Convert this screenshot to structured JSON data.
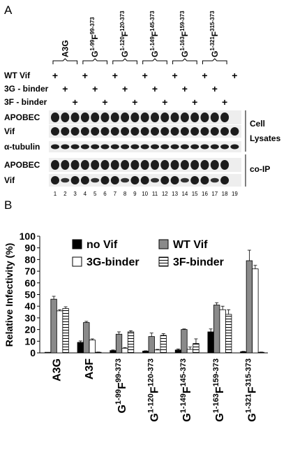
{
  "panel_a": {
    "letter": "A",
    "construct_groups": [
      {
        "base": "A3G",
        "sup1": "",
        "mid": "",
        "sup2": ""
      },
      {
        "base": "G",
        "sup1": "1-99",
        "mid": "F",
        "sup2": "99-373"
      },
      {
        "base": "G",
        "sup1": "1-120",
        "mid": "F",
        "sup2": "120-373"
      },
      {
        "base": "G",
        "sup1": "1-149",
        "mid": "F",
        "sup2": "145-373"
      },
      {
        "base": "G",
        "sup1": "1-163",
        "mid": "F",
        "sup2": "159-373"
      },
      {
        "base": "G",
        "sup1": "1-321",
        "mid": "F",
        "sup2": "315-373"
      }
    ],
    "condition_rows": [
      {
        "label": "WT Vif",
        "lanes": [
          1,
          4,
          7,
          10,
          13,
          16,
          19
        ]
      },
      {
        "label": "3G - binder",
        "lanes": [
          2,
          5,
          8,
          11,
          14,
          17
        ]
      },
      {
        "label": "3F - binder",
        "lanes": [
          3,
          6,
          9,
          12,
          15,
          18
        ]
      }
    ],
    "blot_rows": [
      {
        "label": "APOBEC"
      },
      {
        "label": "Vif"
      },
      {
        "label": "α-tubulin"
      },
      {
        "label": "APOBEC"
      },
      {
        "label": "Vif"
      }
    ],
    "side_labels": {
      "lysates_1": "Cell",
      "lysates_2": "Lysates",
      "coip": "co-IP"
    },
    "lane_numbers": [
      "1",
      "2",
      "3",
      "4",
      "5",
      "6",
      "7",
      "8",
      "9",
      "10",
      "11",
      "12",
      "13",
      "14",
      "15",
      "16",
      "17",
      "18",
      "19"
    ],
    "plus_symbol": "+"
  },
  "panel_b": {
    "letter": "B"
  },
  "chart_data": {
    "type": "bar",
    "ylabel": "Relative Infectivity (%)",
    "ylim": [
      0,
      100
    ],
    "yticks": [
      "0",
      "10",
      "20",
      "30",
      "40",
      "50",
      "60",
      "70",
      "80",
      "90",
      "100"
    ],
    "categories": [
      {
        "base": "A3G",
        "sup1": "",
        "mid": "",
        "sup2": ""
      },
      {
        "base": "A3F",
        "sup1": "",
        "mid": "",
        "sup2": ""
      },
      {
        "base": "G",
        "sup1": "1-99",
        "mid": "F",
        "sup2": "99-373"
      },
      {
        "base": "G",
        "sup1": "1-120",
        "mid": "F",
        "sup2": "120-373"
      },
      {
        "base": "G",
        "sup1": "1-149",
        "mid": "F",
        "sup2": "145-373"
      },
      {
        "base": "G",
        "sup1": "1-163",
        "mid": "F",
        "sup2": "159-373"
      },
      {
        "base": "G",
        "sup1": "1-321",
        "mid": "F",
        "sup2": "315-373"
      }
    ],
    "series": [
      {
        "name": "no Vif",
        "style": "black",
        "values": [
          0.5,
          9,
          2,
          1.5,
          2.5,
          18,
          1
        ],
        "errors": [
          0,
          1.2,
          0.5,
          0.3,
          0.8,
          2.5,
          0.3
        ]
      },
      {
        "name": "WT Vif",
        "style": "gray",
        "values": [
          46,
          26,
          16,
          14,
          20,
          41,
          79
        ],
        "errors": [
          2.5,
          1,
          2,
          3,
          0.5,
          2,
          9
        ]
      },
      {
        "name": "3G-binder",
        "style": "white",
        "values": [
          36,
          11,
          4,
          2.5,
          3,
          37,
          72
        ],
        "errors": [
          1,
          1,
          0.5,
          0.5,
          2,
          3,
          3
        ]
      },
      {
        "name": "3F-binder",
        "style": "striped",
        "values": [
          38,
          0.5,
          18,
          15,
          8,
          33,
          0.5
        ],
        "errors": [
          1.5,
          0.2,
          1,
          1.5,
          4,
          4,
          0.2
        ]
      }
    ],
    "legend": "top",
    "grid": false
  },
  "colors": {
    "black": "#000000",
    "gray": "#8a8a8a",
    "white": "#ffffff",
    "stripe": "#000000"
  }
}
